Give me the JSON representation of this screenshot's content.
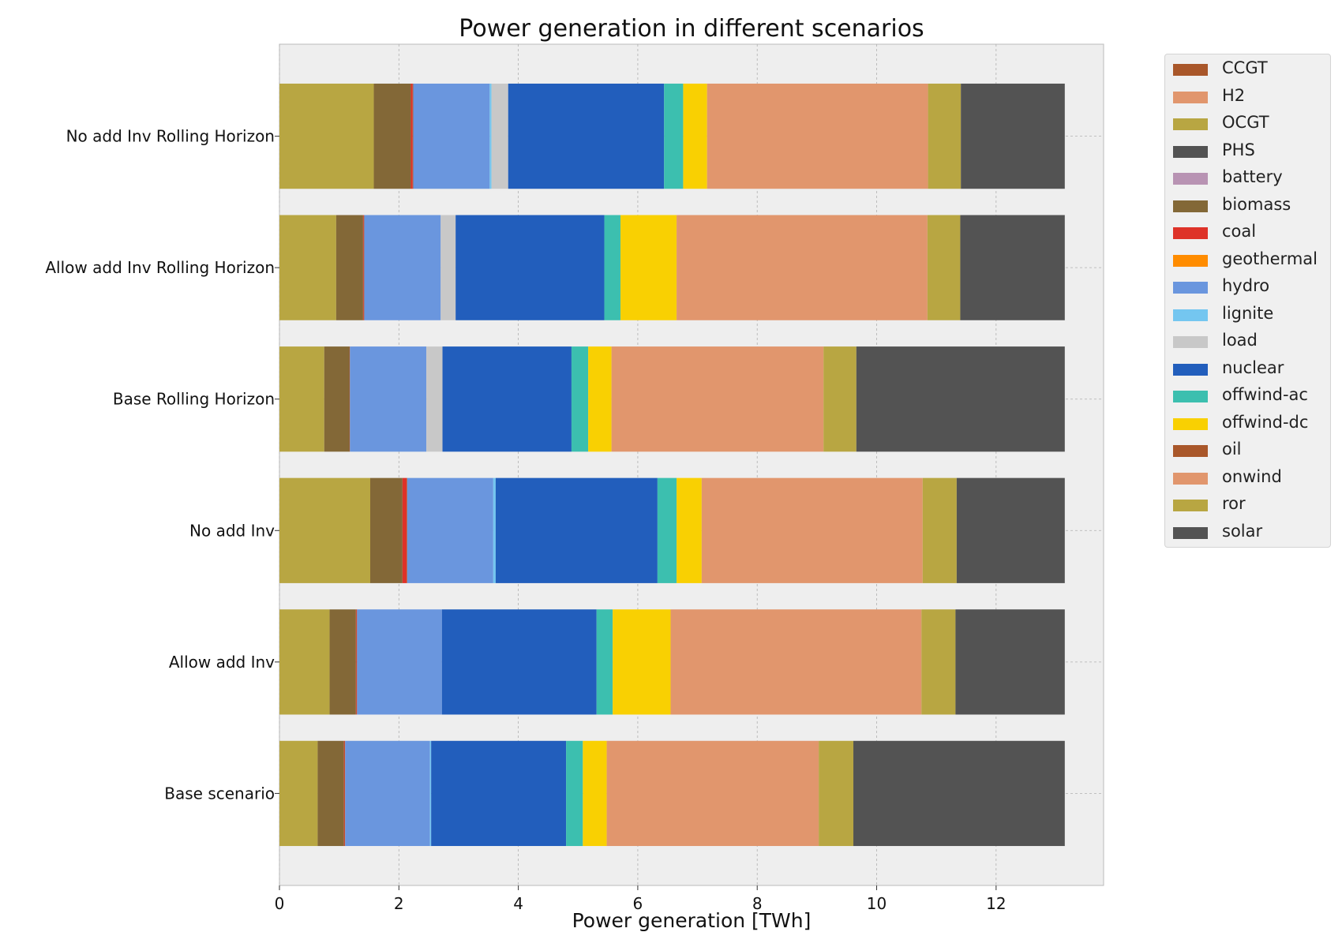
{
  "chart_data": {
    "type": "bar",
    "orientation": "horizontal",
    "stacked": true,
    "title": "Power generation in different scenarios",
    "xlabel": "Power generation [TWh]",
    "ylabel": "",
    "xlim": [
      0,
      13.8
    ],
    "xticks": [
      0,
      2,
      4,
      6,
      8,
      10,
      12
    ],
    "grid": true,
    "legend_position": "outside-top-right",
    "categories": [
      "No add Inv Rolling Horizon",
      "Allow add Inv Rolling Horizon",
      "Base Rolling Horizon",
      "No add Inv",
      "Allow add Inv",
      "Base scenario"
    ],
    "series": [
      {
        "name": "OCGT",
        "color": "#b8a642",
        "values": [
          1.58,
          0.95,
          0.75,
          1.52,
          0.84,
          0.64
        ]
      },
      {
        "name": "biomass",
        "color": "#836837",
        "values": [
          0.62,
          0.45,
          0.42,
          0.54,
          0.44,
          0.44
        ]
      },
      {
        "name": "coal",
        "color": "#de3228",
        "values": [
          0.03,
          0.01,
          0.0,
          0.07,
          0.01,
          0.01
        ]
      },
      {
        "name": "oil",
        "color": "#a9572a",
        "values": [
          0.01,
          0.01,
          0.01,
          0.01,
          0.01,
          0.01
        ]
      },
      {
        "name": "hydro",
        "color": "#6a96de",
        "values": [
          1.28,
          1.28,
          1.28,
          1.44,
          1.42,
          1.42
        ]
      },
      {
        "name": "lignite",
        "color": "#74c6f0",
        "values": [
          0.03,
          0.0,
          0.0,
          0.04,
          0.0,
          0.02
        ]
      },
      {
        "name": "load",
        "color": "#c8c8c8",
        "values": [
          0.28,
          0.25,
          0.27,
          0.0,
          0.0,
          0.0
        ]
      },
      {
        "name": "nuclear",
        "color": "#225ebc",
        "values": [
          2.61,
          2.49,
          2.16,
          2.71,
          2.59,
          2.26
        ]
      },
      {
        "name": "offwind-ac",
        "color": "#3cbfaf",
        "values": [
          0.32,
          0.27,
          0.28,
          0.32,
          0.27,
          0.28
        ]
      },
      {
        "name": "offwind-dc",
        "color": "#f9d002",
        "values": [
          0.4,
          0.94,
          0.39,
          0.42,
          0.97,
          0.4
        ]
      },
      {
        "name": "onwind",
        "color": "#e1966d",
        "values": [
          3.7,
          4.2,
          3.55,
          3.7,
          4.2,
          3.55
        ]
      },
      {
        "name": "ror",
        "color": "#b8a642",
        "values": [
          0.55,
          0.55,
          0.55,
          0.57,
          0.57,
          0.58
        ]
      },
      {
        "name": "solar",
        "color": "#535353",
        "values": [
          1.74,
          1.75,
          3.49,
          1.81,
          1.83,
          3.54
        ]
      },
      {
        "name": "CCGT",
        "color": "#a9572a",
        "values": [
          0,
          0,
          0,
          0,
          0,
          0
        ]
      },
      {
        "name": "H2",
        "color": "#e1966d",
        "values": [
          0,
          0,
          0,
          0,
          0,
          0
        ]
      },
      {
        "name": "PHS",
        "color": "#535353",
        "values": [
          0,
          0,
          0,
          0,
          0,
          0
        ]
      },
      {
        "name": "battery",
        "color": "#b893b3",
        "values": [
          0,
          0,
          0,
          0,
          0,
          0
        ]
      },
      {
        "name": "geothermal",
        "color": "#ff8c00",
        "values": [
          0,
          0,
          0,
          0,
          0,
          0
        ]
      }
    ],
    "legend": [
      {
        "label": "CCGT",
        "color": "#a9572a"
      },
      {
        "label": "H2",
        "color": "#e1966d"
      },
      {
        "label": "OCGT",
        "color": "#b8a642"
      },
      {
        "label": "PHS",
        "color": "#535353"
      },
      {
        "label": "battery",
        "color": "#b893b3"
      },
      {
        "label": "biomass",
        "color": "#836837"
      },
      {
        "label": "coal",
        "color": "#de3228"
      },
      {
        "label": "geothermal",
        "color": "#ff8c00"
      },
      {
        "label": "hydro",
        "color": "#6a96de"
      },
      {
        "label": "lignite",
        "color": "#74c6f0"
      },
      {
        "label": "load",
        "color": "#c8c8c8"
      },
      {
        "label": "nuclear",
        "color": "#225ebc"
      },
      {
        "label": "offwind-ac",
        "color": "#3cbfaf"
      },
      {
        "label": "offwind-dc",
        "color": "#f9d002"
      },
      {
        "label": "oil",
        "color": "#a9572a"
      },
      {
        "label": "onwind",
        "color": "#e1966d"
      },
      {
        "label": "ror",
        "color": "#b8a642"
      },
      {
        "label": "solar",
        "color": "#535353"
      }
    ]
  }
}
